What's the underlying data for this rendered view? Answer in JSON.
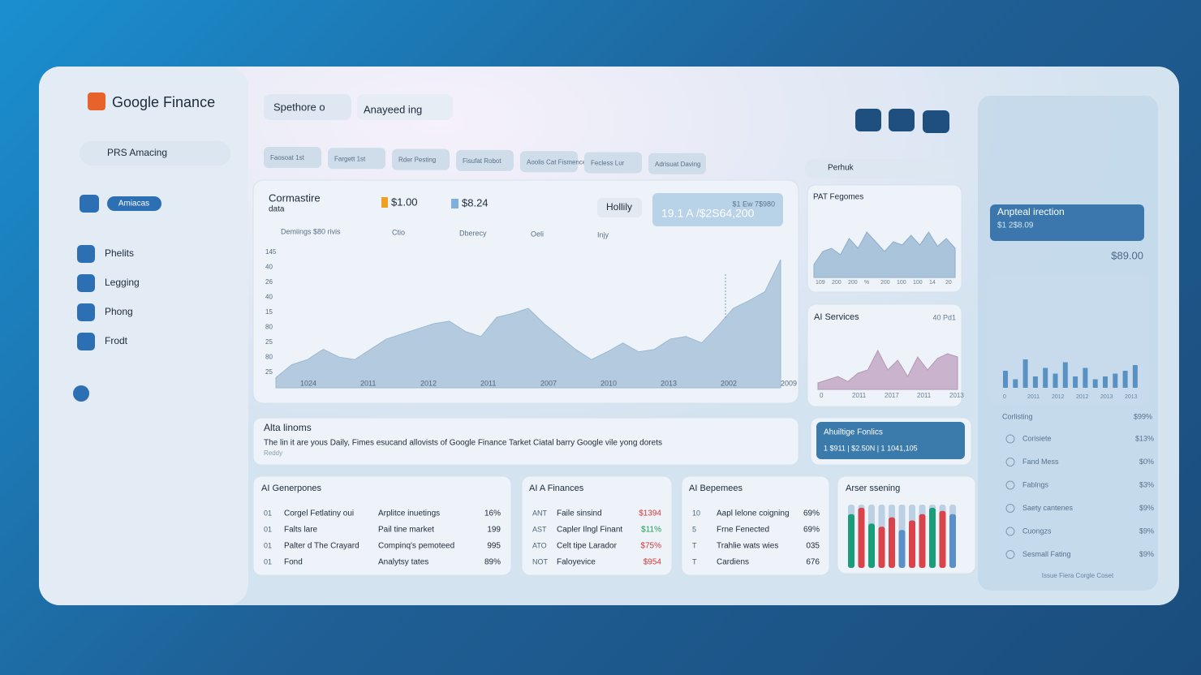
{
  "brand": "Google Finance",
  "sidebar": {
    "search": "PRS Amacing",
    "active": "Amiacas",
    "items": [
      "Phelits",
      "Legging",
      "Phong",
      "Frodt"
    ]
  },
  "toolbar": {
    "dropdowns": [
      "Spethore o",
      "Anayeed ing"
    ]
  },
  "chips": [
    "Faosoat 1st",
    "Fargett 1st",
    "Rder Pesting",
    "Fisufat Robot",
    "Aoolis Cat Fismence",
    "Fecless Lur",
    "Adrisuat Daving"
  ],
  "main_chart": {
    "title": "Cormastire",
    "subtitle": "data",
    "price1": "$1.00",
    "price2": "$8.24",
    "button": "Hollily",
    "badge_top": "$1 Ew 7$980",
    "badge": "19.1 A /$2S64,200",
    "legend": [
      "Demiings $80 rivis",
      "Ctio",
      "Dberecy",
      "Oeli",
      "Injy"
    ],
    "y_labels": [
      "145",
      "40",
      "26",
      "40",
      "15",
      "80",
      "25",
      "80",
      "25"
    ],
    "x_labels": [
      "1024",
      "2011",
      "2012",
      "2011",
      "2007",
      "2010",
      "2013",
      "2002",
      "2009"
    ],
    "ylim": [
      0,
      100
    ],
    "values": [
      8,
      18,
      22,
      30,
      24,
      22,
      30,
      38,
      42,
      46,
      50,
      52,
      44,
      40,
      55,
      58,
      62,
      50,
      40,
      30,
      22,
      28,
      35,
      28,
      30,
      38,
      40,
      35,
      48,
      62,
      68,
      75,
      100
    ],
    "color": "#a9c4db"
  },
  "chart_a": {
    "title": "PAT Fegomes",
    "ylim": [
      0,
      100
    ],
    "values": [
      20,
      40,
      45,
      35,
      60,
      45,
      70,
      55,
      40,
      55,
      50,
      65,
      50,
      70,
      48,
      60,
      45
    ],
    "x_labels": [
      "109",
      "200",
      "200",
      "%",
      "200",
      "100",
      "100",
      "14",
      "20"
    ],
    "color": "#9fbcd6"
  },
  "chart_b": {
    "title": "AI Services",
    "note": "40 Pd1",
    "ylim": [
      0,
      100
    ],
    "values": [
      10,
      15,
      20,
      12,
      25,
      30,
      60,
      30,
      45,
      20,
      50,
      30,
      48,
      55,
      50
    ],
    "x_labels": [
      "0",
      "2011",
      "2017",
      "2011",
      "2013"
    ],
    "color": "#c4a9c6"
  },
  "banner": {
    "title": "Alta linoms",
    "text": "The lin it are yous Daily, Fimes esucand allovists of Google Finance Tarket Ciatal barry Google vile yong dorets",
    "sub": "Reddy"
  },
  "highlight": {
    "title": "Ahuiltige Fonlics",
    "text": "1  $911  |  $2.50N  |  1 1041,105"
  },
  "tables": [
    {
      "title": "AI Generpones",
      "rows": [
        [
          "01",
          "Corgel Fetlatiny oui",
          "Arplitce inuetings",
          "16%"
        ],
        [
          "01",
          "Falts lare",
          "Pail tine market",
          "199"
        ],
        [
          "01",
          "Palter d The Crayard",
          "Compinq's pemoteed",
          "995"
        ],
        [
          "01",
          "Fond",
          "Analytsy tates",
          "89%"
        ]
      ]
    },
    {
      "title": "AI A Finances",
      "rows": [
        [
          "ANT",
          "Faile sinsind",
          "$1394"
        ],
        [
          "AST",
          "Capler Ilngl Finant",
          "$11%"
        ],
        [
          "ATO",
          "Celt tipe Larador",
          "$75%"
        ],
        [
          "NOT",
          "Faloyevice",
          "$954"
        ]
      ],
      "value_colors": [
        "#d23a3a",
        "#1a9e50",
        "#d23a3a",
        "#d23a3a"
      ]
    },
    {
      "title": "AI Bepemees",
      "rows": [
        [
          "10",
          "Aapl lelone coigning",
          "69%"
        ],
        [
          "5",
          "Frne Fenected",
          "69%"
        ],
        [
          "T",
          "Trahlie wats wies",
          "035"
        ],
        [
          "T",
          "Cardiens",
          "676"
        ]
      ]
    }
  ],
  "bars_card": {
    "title": "Arser ssening",
    "ylim": [
      0,
      100
    ],
    "values": [
      85,
      95,
      70,
      65,
      80,
      60,
      75,
      85,
      95,
      90,
      85
    ],
    "colors": [
      "#1a9e7a",
      "#d9434a",
      "#1a9e7a",
      "#d9434a",
      "#d9434a",
      "#5b8fc7",
      "#d9434a",
      "#d9434a",
      "#1a9e7a",
      "#d9434a",
      "#5b8fc7"
    ]
  },
  "search": "Perhuk",
  "right_panel": {
    "title": "Anpteal irection",
    "sub": "$1 2$8.09",
    "price": "$89.00",
    "chart": {
      "ylim": [
        0,
        100
      ],
      "values": [
        30,
        15,
        50,
        20,
        35,
        25,
        45,
        20,
        35,
        15,
        20,
        25,
        30,
        40
      ],
      "x_labels": [
        "0",
        "2011",
        "2012",
        "2012",
        "2013",
        "2013"
      ],
      "color": "#3d7fb8"
    },
    "list_title": "Corlisting",
    "list_value": "$99%",
    "list": [
      [
        "Corisiete",
        "$13%"
      ],
      [
        "Fand Mess",
        "$0%"
      ],
      [
        "Fablngs",
        "$3%"
      ],
      [
        "Saety cantenes",
        "$9%"
      ],
      [
        "Cuongzs",
        "$9%"
      ],
      [
        "Sesmall Fating",
        "$9%"
      ]
    ],
    "footer": "Issue Fiera Corgle Coset"
  }
}
